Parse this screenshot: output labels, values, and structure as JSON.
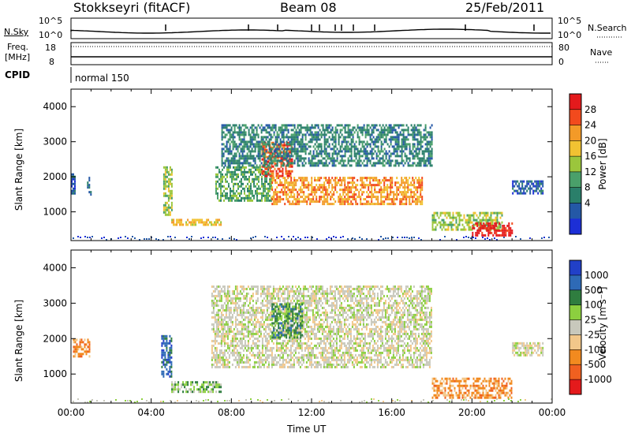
{
  "header": {
    "station": "Stokkseyri (fitACF)",
    "beam": "Beam 08",
    "date": "25/Feb/2011"
  },
  "strips": {
    "nsky_label": "N.Sky",
    "nsky_ticks": [
      "10^5",
      "10^0"
    ],
    "nsearch_label": "N.Search",
    "nsearch_ticks": [
      "10^5",
      "10^0"
    ],
    "freq_label_line1": "Freq.",
    "freq_label_line2": "[MHz]",
    "freq_ticks": [
      "18",
      "8"
    ],
    "nave_label": "Nave",
    "nave_ticks": [
      "80",
      "0"
    ],
    "cpid_label": "CPID",
    "cpid_text": "normal 150"
  },
  "chart_data": [
    {
      "type": "heatmap",
      "name": "power",
      "ylabel": "Slant Range [km]",
      "yticks": [
        "4000",
        "3000",
        "2000",
        "1000"
      ],
      "ylim": [
        180,
        4500
      ],
      "xlabel": "",
      "colorbar": {
        "label": "Power [dB]",
        "ticks": [
          "28",
          "24",
          "20",
          "16",
          "12",
          "8",
          "4"
        ],
        "colors": [
          "#e41a1c",
          "#f24a1d",
          "#f39a28",
          "#f1c232",
          "#9bc63c",
          "#4aa06a",
          "#2a7f6a",
          "#2458a6",
          "#1c2fd6"
        ]
      },
      "regions": [
        {
          "t": [
            0.0,
            0.2
          ],
          "r": [
            1500,
            2100
          ],
          "level": 7
        },
        {
          "t": [
            0.8,
            1.0
          ],
          "r": [
            1500,
            2000
          ],
          "level": 7
        },
        {
          "t": [
            4.6,
            5.0
          ],
          "r": [
            900,
            2300
          ],
          "level": 4
        },
        {
          "t": [
            5.0,
            7.5
          ],
          "r": [
            600,
            800
          ],
          "level": 3
        },
        {
          "t": [
            7.2,
            10.0
          ],
          "r": [
            1300,
            2300
          ],
          "level": 5
        },
        {
          "t": [
            9.5,
            11.0
          ],
          "r": [
            2000,
            3000
          ],
          "level": 1
        },
        {
          "t": [
            10.0,
            17.5
          ],
          "r": [
            1200,
            2000
          ],
          "level": 2
        },
        {
          "t": [
            7.5,
            18.0
          ],
          "r": [
            2300,
            3500
          ],
          "level": 6
        },
        {
          "t": [
            18.0,
            21.5
          ],
          "r": [
            500,
            1000
          ],
          "level": 4
        },
        {
          "t": [
            20.0,
            22.0
          ],
          "r": [
            300,
            700
          ],
          "level": 0
        },
        {
          "t": [
            22.0,
            23.5
          ],
          "r": [
            1500,
            1900
          ],
          "level": 7
        }
      ]
    },
    {
      "type": "heatmap",
      "name": "velocity",
      "ylabel": "Slant Range [km]",
      "yticks": [
        "4000",
        "3000",
        "2000",
        "1000"
      ],
      "ylim": [
        180,
        4500
      ],
      "xlabel": "Time UT",
      "xticks": [
        "00:00",
        "04:00",
        "08:00",
        "12:00",
        "16:00",
        "20:00",
        "00:00"
      ],
      "xlim": [
        0,
        24
      ],
      "colorbar": {
        "label": "Velocity [m s⁻¹]",
        "ticks": [
          "1000",
          "500",
          "100",
          "25",
          "-25",
          "-100",
          "-500",
          "-1000"
        ],
        "colors": [
          "#2140c8",
          "#2e6ab6",
          "#2f7d3f",
          "#8ccf3f",
          "#c8c8bc",
          "#f2c78a",
          "#f28a1f",
          "#f06020",
          "#e41a1c"
        ]
      },
      "regions": [
        {
          "t": [
            0.1,
            0.9
          ],
          "r": [
            1500,
            2000
          ],
          "level": 6
        },
        {
          "t": [
            4.5,
            5.0
          ],
          "r": [
            900,
            2100
          ],
          "level": 1
        },
        {
          "t": [
            5.0,
            7.5
          ],
          "r": [
            500,
            800
          ],
          "level": 3
        },
        {
          "t": [
            7.0,
            18.0
          ],
          "r": [
            1200,
            3500
          ],
          "level": 4
        },
        {
          "t": [
            10.0,
            11.5
          ],
          "r": [
            2000,
            3000
          ],
          "level": 2
        },
        {
          "t": [
            18.0,
            22.0
          ],
          "r": [
            300,
            900
          ],
          "level": 6
        },
        {
          "t": [
            22.0,
            23.5
          ],
          "r": [
            1500,
            1900
          ],
          "level": 4
        }
      ]
    }
  ]
}
